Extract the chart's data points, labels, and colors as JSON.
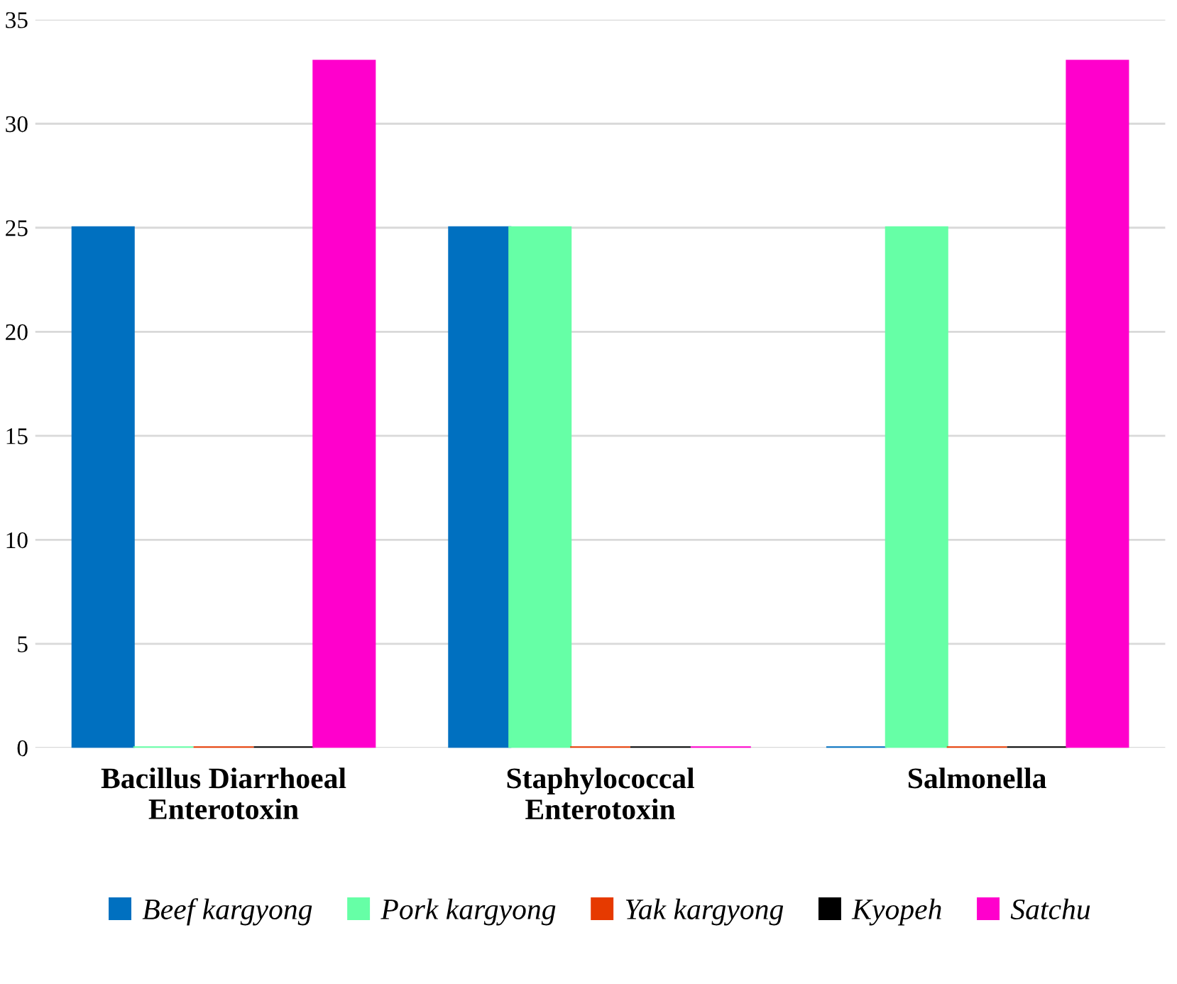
{
  "chart_data": {
    "type": "bar",
    "categories": [
      "Bacillus Diarrhoeal\nEnterotoxin",
      "Staphylococcal\nEnterotoxin",
      "Salmonella"
    ],
    "series": [
      {
        "name": "Beef kargyong",
        "color": "#0070c0",
        "values": [
          25,
          25,
          0
        ]
      },
      {
        "name": "Pork kargyong",
        "color": "#66ffa6",
        "values": [
          0,
          25,
          25
        ]
      },
      {
        "name": "Yak kargyong",
        "color": "#e63a00",
        "values": [
          0,
          0,
          0
        ]
      },
      {
        "name": "Kyopeh",
        "color": "#000000",
        "values": [
          0,
          0,
          0
        ]
      },
      {
        "name": "Satchu",
        "color": "#ff00cc",
        "values": [
          33,
          0,
          33
        ]
      }
    ],
    "ylim": [
      0,
      35
    ],
    "yticks": [
      0,
      5,
      10,
      15,
      20,
      25,
      30,
      35
    ],
    "grid": "y",
    "legend": "bottom"
  }
}
